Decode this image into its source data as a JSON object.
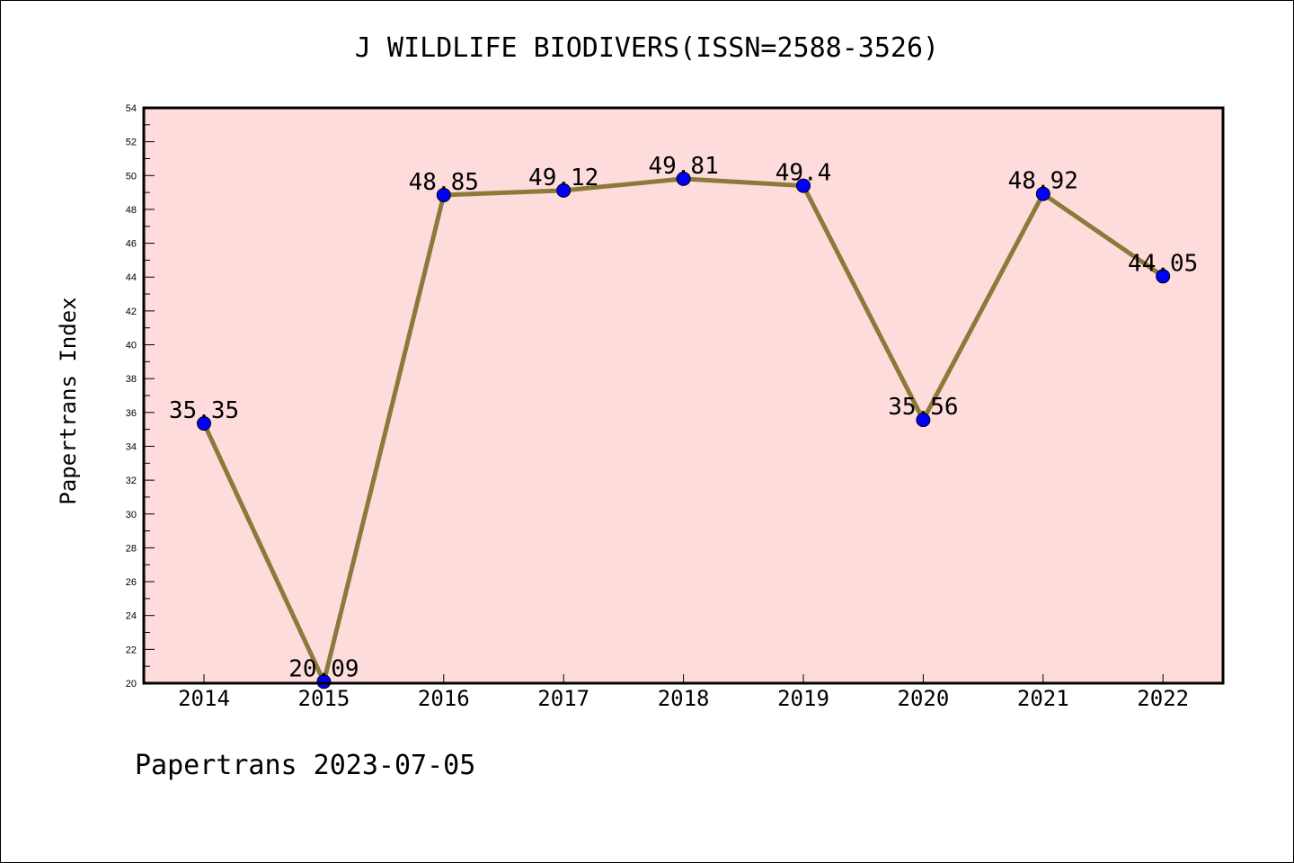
{
  "title": "J WILDLIFE BIODIVERS(ISSN=2588-3526)",
  "footer": "Papertrans 2023-07-05",
  "colors": {
    "plot_background": "#ffdcdc",
    "line": "#8b7a3a",
    "marker": "#0000ff"
  },
  "chart_data": {
    "type": "line",
    "title": "J WILDLIFE BIODIVERS(ISSN=2588-3526)",
    "xlabel": "",
    "ylabel": "Papertrans Index",
    "categories": [
      "2014",
      "2015",
      "2016",
      "2017",
      "2018",
      "2019",
      "2020",
      "2021",
      "2022"
    ],
    "series": [
      {
        "values": [
          35.35,
          20.09,
          48.85,
          49.12,
          49.81,
          49.4,
          35.56,
          48.92,
          44.05
        ],
        "labels": [
          "35.35",
          "20.09",
          "48.85",
          "49.12",
          "49.81",
          "49.4",
          "35.56",
          "48.92",
          "44.05"
        ]
      }
    ],
    "ylim": [
      20,
      54
    ],
    "yticks": [
      "20",
      "22",
      "24",
      "26",
      "28",
      "30",
      "32",
      "34",
      "36",
      "38",
      "40",
      "42",
      "44",
      "46",
      "48",
      "50",
      "52",
      "54"
    ],
    "grid": false,
    "legend": "none"
  }
}
